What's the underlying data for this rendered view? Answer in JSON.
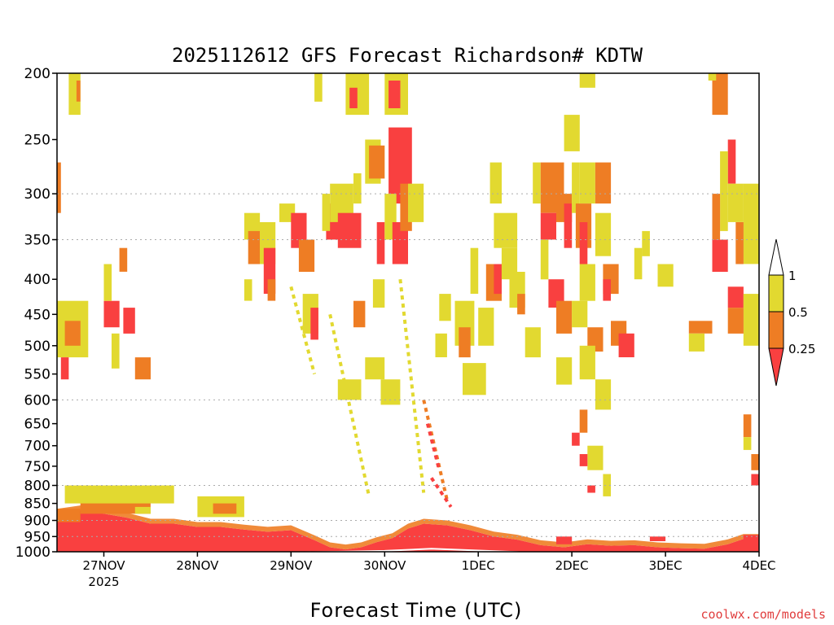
{
  "chart_data": {
    "type": "heatmap",
    "title": "2025112612 GFS Forecast Richardson# KDTW",
    "xlabel": "Forecast Time (UTC)",
    "credit": "coolwx.com/models",
    "y_axis": {
      "scale": "log",
      "reversed": true,
      "ylim": [
        1000,
        200
      ],
      "ticks": [
        "200",
        "250",
        "300",
        "350",
        "400",
        "450",
        "500",
        "550",
        "600",
        "650",
        "700",
        "750",
        "800",
        "850",
        "900",
        "950",
        "1000"
      ],
      "gridlines_at": [
        300,
        350,
        600,
        800,
        900,
        950,
        1000
      ]
    },
    "x_axis": {
      "start": "2025-11-26 12Z",
      "end": "2025-12-04 00Z",
      "ticks": [
        {
          "label": "27NOV",
          "sublabel": "2025",
          "t": 12
        },
        {
          "label": "28NOV",
          "t": 36
        },
        {
          "label": "29NOV",
          "t": 60
        },
        {
          "label": "30NOV",
          "t": 84
        },
        {
          "label": "1DEC",
          "t": 108
        },
        {
          "label": "2DEC",
          "t": 132
        },
        {
          "label": "3DEC",
          "t": 156
        },
        {
          "label": "4DEC",
          "t": 180
        }
      ]
    },
    "legend": {
      "placement": "right",
      "entries": [
        {
          "label": "1"
        },
        {
          "label": "0.5"
        },
        {
          "label": "0.25"
        }
      ],
      "colors": {
        "above": "#ffffff",
        "b05_1": "#e2d930",
        "b025_05": "#ee7d24",
        "below": "#f94040"
      }
    },
    "ground_color": "#8c4a2a",
    "surface_line_color": "#ffffff",
    "grid_color": "#aaaaaa",
    "low_level_layer": [
      {
        "t": 0,
        "top": 880
      },
      {
        "t": 6,
        "top": 870
      },
      {
        "t": 12,
        "top": 880
      },
      {
        "t": 18,
        "top": 892
      },
      {
        "t": 24,
        "top": 910
      },
      {
        "t": 30,
        "top": 910
      },
      {
        "t": 36,
        "top": 920
      },
      {
        "t": 42,
        "top": 920
      },
      {
        "t": 48,
        "top": 928
      },
      {
        "t": 54,
        "top": 935
      },
      {
        "t": 60,
        "top": 930
      },
      {
        "t": 66,
        "top": 962
      },
      {
        "t": 70,
        "top": 985
      },
      {
        "t": 74,
        "top": 992
      },
      {
        "t": 78,
        "top": 985
      },
      {
        "t": 82,
        "top": 968
      },
      {
        "t": 86,
        "top": 955
      },
      {
        "t": 90,
        "top": 925
      },
      {
        "t": 94,
        "top": 910
      },
      {
        "t": 100,
        "top": 915
      },
      {
        "t": 106,
        "top": 930
      },
      {
        "t": 112,
        "top": 950
      },
      {
        "t": 118,
        "top": 960
      },
      {
        "t": 124,
        "top": 978
      },
      {
        "t": 130,
        "top": 985
      },
      {
        "t": 136,
        "top": 975
      },
      {
        "t": 142,
        "top": 980
      },
      {
        "t": 148,
        "top": 978
      },
      {
        "t": 154,
        "top": 985
      },
      {
        "t": 160,
        "top": 988
      },
      {
        "t": 166,
        "top": 990
      },
      {
        "t": 172,
        "top": 975
      },
      {
        "t": 176,
        "top": 958
      },
      {
        "t": 180,
        "top": 958
      }
    ],
    "surface_line": [
      {
        "t": 0,
        "p": 1002
      },
      {
        "t": 24,
        "p": 1006
      },
      {
        "t": 48,
        "p": 1004
      },
      {
        "t": 72,
        "p": 1000
      },
      {
        "t": 84,
        "p": 997
      },
      {
        "t": 96,
        "p": 990
      },
      {
        "t": 120,
        "p": 1002
      },
      {
        "t": 144,
        "p": 1008
      },
      {
        "t": 168,
        "p": 1004
      },
      {
        "t": 180,
        "p": 1003
      }
    ],
    "cells": [
      {
        "t0": 0,
        "t1": 6,
        "p0": 865,
        "p1": 905,
        "cat": "b025_05"
      },
      {
        "t0": 6,
        "t1": 24,
        "p0": 835,
        "p1": 880,
        "cat": "b025_05"
      },
      {
        "t0": 2,
        "t1": 30,
        "p0": 800,
        "p1": 850,
        "cat": "b05_1"
      },
      {
        "t0": 36,
        "t1": 48,
        "p0": 830,
        "p1": 890,
        "cat": "b05_1"
      },
      {
        "t0": 40,
        "t1": 46,
        "p0": 850,
        "p1": 880,
        "cat": "b025_05"
      },
      {
        "t0": 20,
        "t1": 24,
        "p0": 860,
        "p1": 880,
        "cat": "b05_1"
      },
      {
        "t0": 3,
        "t1": 6,
        "p0": 200,
        "p1": 230,
        "cat": "b05_1"
      },
      {
        "t0": 5,
        "t1": 6,
        "p0": 205,
        "p1": 220,
        "cat": "b025_05"
      },
      {
        "t0": 0,
        "t1": 1,
        "p0": 270,
        "p1": 320,
        "cat": "b025_05"
      },
      {
        "t0": 0,
        "t1": 8,
        "p0": 430,
        "p1": 520,
        "cat": "b05_1"
      },
      {
        "t0": 2,
        "t1": 6,
        "p0": 460,
        "p1": 500,
        "cat": "b025_05"
      },
      {
        "t0": 1,
        "t1": 3,
        "p0": 520,
        "p1": 560,
        "cat": "below"
      },
      {
        "t0": 12,
        "t1": 16,
        "p0": 430,
        "p1": 470,
        "cat": "below"
      },
      {
        "t0": 12,
        "t1": 14,
        "p0": 380,
        "p1": 430,
        "cat": "b05_1"
      },
      {
        "t0": 17,
        "t1": 20,
        "p0": 440,
        "p1": 480,
        "cat": "below"
      },
      {
        "t0": 16,
        "t1": 18,
        "p0": 360,
        "p1": 390,
        "cat": "b025_05"
      },
      {
        "t0": 20,
        "t1": 24,
        "p0": 520,
        "p1": 560,
        "cat": "b025_05"
      },
      {
        "t0": 14,
        "t1": 16,
        "p0": 480,
        "p1": 540,
        "cat": "b05_1"
      },
      {
        "t0": 48,
        "t1": 52,
        "p0": 320,
        "p1": 350,
        "cat": "b05_1"
      },
      {
        "t0": 49,
        "t1": 54,
        "p0": 340,
        "p1": 380,
        "cat": "b025_05"
      },
      {
        "t0": 52,
        "t1": 56,
        "p0": 330,
        "p1": 380,
        "cat": "b05_1"
      },
      {
        "t0": 53,
        "t1": 56,
        "p0": 360,
        "p1": 420,
        "cat": "below"
      },
      {
        "t0": 48,
        "t1": 50,
        "p0": 400,
        "p1": 430,
        "cat": "b05_1"
      },
      {
        "t0": 54,
        "t1": 56,
        "p0": 400,
        "p1": 430,
        "cat": "b025_05"
      },
      {
        "t0": 57,
        "t1": 61,
        "p0": 310,
        "p1": 330,
        "cat": "b05_1"
      },
      {
        "t0": 60,
        "t1": 64,
        "p0": 320,
        "p1": 360,
        "cat": "below"
      },
      {
        "t0": 62,
        "t1": 66,
        "p0": 350,
        "p1": 390,
        "cat": "b025_05"
      },
      {
        "t0": 63,
        "t1": 67,
        "p0": 420,
        "p1": 480,
        "cat": "b05_1"
      },
      {
        "t0": 65,
        "t1": 67,
        "p0": 440,
        "p1": 490,
        "cat": "below"
      },
      {
        "t0": 66,
        "t1": 68,
        "p0": 190,
        "p1": 220,
        "cat": "b05_1"
      },
      {
        "t0": 69,
        "t1": 75,
        "p0": 310,
        "p1": 350,
        "cat": "below"
      },
      {
        "t0": 68,
        "t1": 70,
        "p0": 300,
        "p1": 340,
        "cat": "b05_1"
      },
      {
        "t0": 70,
        "t1": 76,
        "p0": 290,
        "p1": 330,
        "cat": "b05_1"
      },
      {
        "t0": 72,
        "t1": 78,
        "p0": 320,
        "p1": 360,
        "cat": "below"
      },
      {
        "t0": 74,
        "t1": 80,
        "p0": 200,
        "p1": 230,
        "cat": "b05_1"
      },
      {
        "t0": 75,
        "t1": 77,
        "p0": 210,
        "p1": 225,
        "cat": "below"
      },
      {
        "t0": 76,
        "t1": 78,
        "p0": 280,
        "p1": 310,
        "cat": "b05_1"
      },
      {
        "t0": 79,
        "t1": 83,
        "p0": 250,
        "p1": 290,
        "cat": "b05_1"
      },
      {
        "t0": 80,
        "t1": 84,
        "p0": 255,
        "p1": 285,
        "cat": "b025_05"
      },
      {
        "t0": 82,
        "t1": 84,
        "p0": 330,
        "p1": 380,
        "cat": "below"
      },
      {
        "t0": 84,
        "t1": 90,
        "p0": 200,
        "p1": 230,
        "cat": "b05_1"
      },
      {
        "t0": 85,
        "t1": 88,
        "p0": 205,
        "p1": 225,
        "cat": "below"
      },
      {
        "t0": 85,
        "t1": 91,
        "p0": 240,
        "p1": 310,
        "cat": "below"
      },
      {
        "t0": 84,
        "t1": 87,
        "p0": 300,
        "p1": 350,
        "cat": "b05_1"
      },
      {
        "t0": 86,
        "t1": 90,
        "p0": 330,
        "p1": 380,
        "cat": "below"
      },
      {
        "t0": 88,
        "t1": 91,
        "p0": 290,
        "p1": 340,
        "cat": "b025_05"
      },
      {
        "t0": 81,
        "t1": 84,
        "p0": 400,
        "p1": 440,
        "cat": "b05_1"
      },
      {
        "t0": 90,
        "t1": 94,
        "p0": 290,
        "p1": 330,
        "cat": "b05_1"
      },
      {
        "t0": 72,
        "t1": 78,
        "p0": 560,
        "p1": 600,
        "cat": "b05_1"
      },
      {
        "t0": 79,
        "t1": 84,
        "p0": 520,
        "p1": 560,
        "cat": "b05_1"
      },
      {
        "t0": 83,
        "t1": 88,
        "p0": 560,
        "p1": 610,
        "cat": "b05_1"
      },
      {
        "t0": 76,
        "t1": 79,
        "p0": 430,
        "p1": 470,
        "cat": "b025_05"
      },
      {
        "t0": 97,
        "t1": 100,
        "p0": 480,
        "p1": 520,
        "cat": "b05_1"
      },
      {
        "t0": 98,
        "t1": 101,
        "p0": 420,
        "p1": 460,
        "cat": "b05_1"
      },
      {
        "t0": 102,
        "t1": 107,
        "p0": 430,
        "p1": 500,
        "cat": "b05_1"
      },
      {
        "t0": 103,
        "t1": 106,
        "p0": 470,
        "p1": 520,
        "cat": "b025_05"
      },
      {
        "t0": 104,
        "t1": 110,
        "p0": 530,
        "p1": 590,
        "cat": "b05_1"
      },
      {
        "t0": 108,
        "t1": 112,
        "p0": 440,
        "p1": 500,
        "cat": "b05_1"
      },
      {
        "t0": 106,
        "t1": 108,
        "p0": 360,
        "p1": 420,
        "cat": "b05_1"
      },
      {
        "t0": 111,
        "t1": 114,
        "p0": 270,
        "p1": 310,
        "cat": "b05_1"
      },
      {
        "t0": 112,
        "t1": 118,
        "p0": 320,
        "p1": 360,
        "cat": "b05_1"
      },
      {
        "t0": 110,
        "t1": 114,
        "p0": 380,
        "p1": 430,
        "cat": "b025_05"
      },
      {
        "t0": 112,
        "t1": 114,
        "p0": 380,
        "p1": 420,
        "cat": "below"
      },
      {
        "t0": 114,
        "t1": 118,
        "p0": 360,
        "p1": 400,
        "cat": "b05_1"
      },
      {
        "t0": 116,
        "t1": 120,
        "p0": 390,
        "p1": 440,
        "cat": "b05_1"
      },
      {
        "t0": 118,
        "t1": 120,
        "p0": 420,
        "p1": 450,
        "cat": "b025_05"
      },
      {
        "t0": 120,
        "t1": 124,
        "p0": 470,
        "p1": 520,
        "cat": "b05_1"
      },
      {
        "t0": 122,
        "t1": 124,
        "p0": 270,
        "p1": 310,
        "cat": "b05_1"
      },
      {
        "t0": 124,
        "t1": 130,
        "p0": 270,
        "p1": 320,
        "cat": "b025_05"
      },
      {
        "t0": 124,
        "t1": 128,
        "p0": 320,
        "p1": 350,
        "cat": "below"
      },
      {
        "t0": 128,
        "t1": 132,
        "p0": 300,
        "p1": 330,
        "cat": "b025_05"
      },
      {
        "t0": 130,
        "t1": 132,
        "p0": 310,
        "p1": 360,
        "cat": "below"
      },
      {
        "t0": 124,
        "t1": 126,
        "p0": 350,
        "p1": 400,
        "cat": "b05_1"
      },
      {
        "t0": 126,
        "t1": 130,
        "p0": 400,
        "p1": 440,
        "cat": "below"
      },
      {
        "t0": 128,
        "t1": 132,
        "p0": 430,
        "p1": 480,
        "cat": "b025_05"
      },
      {
        "t0": 132,
        "t1": 134,
        "p0": 270,
        "p1": 320,
        "cat": "b05_1"
      },
      {
        "t0": 134,
        "t1": 138,
        "p0": 270,
        "p1": 310,
        "cat": "b05_1"
      },
      {
        "t0": 133,
        "t1": 137,
        "p0": 310,
        "p1": 360,
        "cat": "b025_05"
      },
      {
        "t0": 134,
        "t1": 136,
        "p0": 330,
        "p1": 380,
        "cat": "below"
      },
      {
        "t0": 134,
        "t1": 138,
        "p0": 380,
        "p1": 430,
        "cat": "b05_1"
      },
      {
        "t0": 132,
        "t1": 136,
        "p0": 430,
        "p1": 470,
        "cat": "b05_1"
      },
      {
        "t0": 136,
        "t1": 140,
        "p0": 470,
        "p1": 510,
        "cat": "b025_05"
      },
      {
        "t0": 138,
        "t1": 142,
        "p0": 270,
        "p1": 310,
        "cat": "b025_05"
      },
      {
        "t0": 138,
        "t1": 142,
        "p0": 320,
        "p1": 370,
        "cat": "b05_1"
      },
      {
        "t0": 140,
        "t1": 144,
        "p0": 380,
        "p1": 420,
        "cat": "b025_05"
      },
      {
        "t0": 140,
        "t1": 142,
        "p0": 400,
        "p1": 430,
        "cat": "below"
      },
      {
        "t0": 142,
        "t1": 146,
        "p0": 460,
        "p1": 500,
        "cat": "b025_05"
      },
      {
        "t0": 144,
        "t1": 148,
        "p0": 480,
        "p1": 520,
        "cat": "below"
      },
      {
        "t0": 148,
        "t1": 150,
        "p0": 360,
        "p1": 400,
        "cat": "b05_1"
      },
      {
        "t0": 150,
        "t1": 152,
        "p0": 340,
        "p1": 370,
        "cat": "b05_1"
      },
      {
        "t0": 154,
        "t1": 158,
        "p0": 380,
        "p1": 410,
        "cat": "b05_1"
      },
      {
        "t0": 128,
        "t1": 132,
        "p0": 520,
        "p1": 570,
        "cat": "b05_1"
      },
      {
        "t0": 134,
        "t1": 138,
        "p0": 500,
        "p1": 560,
        "cat": "b05_1"
      },
      {
        "t0": 138,
        "t1": 142,
        "p0": 560,
        "p1": 620,
        "cat": "b05_1"
      },
      {
        "t0": 134,
        "t1": 136,
        "p0": 620,
        "p1": 670,
        "cat": "b025_05"
      },
      {
        "t0": 132,
        "t1": 134,
        "p0": 670,
        "p1": 700,
        "cat": "below"
      },
      {
        "t0": 136,
        "t1": 140,
        "p0": 700,
        "p1": 760,
        "cat": "b05_1"
      },
      {
        "t0": 134,
        "t1": 136,
        "p0": 720,
        "p1": 750,
        "cat": "below"
      },
      {
        "t0": 140,
        "t1": 142,
        "p0": 770,
        "p1": 830,
        "cat": "b05_1"
      },
      {
        "t0": 136,
        "t1": 138,
        "p0": 800,
        "p1": 820,
        "cat": "below"
      },
      {
        "t0": 134,
        "t1": 138,
        "p0": 200,
        "p1": 210,
        "cat": "b05_1"
      },
      {
        "t0": 130,
        "t1": 134,
        "p0": 230,
        "p1": 260,
        "cat": "b05_1"
      },
      {
        "t0": 168,
        "t1": 172,
        "p0": 200,
        "p1": 230,
        "cat": "b025_05"
      },
      {
        "t0": 167,
        "t1": 169,
        "p0": 200,
        "p1": 205,
        "cat": "b05_1"
      },
      {
        "t0": 172,
        "t1": 174,
        "p0": 250,
        "p1": 290,
        "cat": "below"
      },
      {
        "t0": 170,
        "t1": 172,
        "p0": 260,
        "p1": 340,
        "cat": "b05_1"
      },
      {
        "t0": 168,
        "t1": 170,
        "p0": 300,
        "p1": 350,
        "cat": "b025_05"
      },
      {
        "t0": 172,
        "t1": 176,
        "p0": 290,
        "p1": 330,
        "cat": "b05_1"
      },
      {
        "t0": 176,
        "t1": 180,
        "p0": 290,
        "p1": 380,
        "cat": "b05_1"
      },
      {
        "t0": 168,
        "t1": 172,
        "p0": 350,
        "p1": 390,
        "cat": "below"
      },
      {
        "t0": 174,
        "t1": 176,
        "p0": 330,
        "p1": 380,
        "cat": "b025_05"
      },
      {
        "t0": 172,
        "t1": 176,
        "p0": 410,
        "p1": 440,
        "cat": "below"
      },
      {
        "t0": 176,
        "t1": 180,
        "p0": 420,
        "p1": 500,
        "cat": "b05_1"
      },
      {
        "t0": 172,
        "t1": 176,
        "p0": 440,
        "p1": 480,
        "cat": "b025_05"
      },
      {
        "t0": 162,
        "t1": 168,
        "p0": 460,
        "p1": 480,
        "cat": "b025_05"
      },
      {
        "t0": 162,
        "t1": 166,
        "p0": 480,
        "p1": 510,
        "cat": "b05_1"
      },
      {
        "t0": 176,
        "t1": 178,
        "p0": 630,
        "p1": 680,
        "cat": "b025_05"
      },
      {
        "t0": 176,
        "t1": 178,
        "p0": 680,
        "p1": 710,
        "cat": "b05_1"
      },
      {
        "t0": 178,
        "t1": 180,
        "p0": 720,
        "p1": 760,
        "cat": "b025_05"
      },
      {
        "t0": 178,
        "t1": 180,
        "p0": 770,
        "p1": 800,
        "cat": "below"
      },
      {
        "t0": 152,
        "t1": 156,
        "p0": 950,
        "p1": 965,
        "cat": "below"
      },
      {
        "t0": 128,
        "t1": 132,
        "p0": 950,
        "p1": 975,
        "cat": "below"
      },
      {
        "t0": 176,
        "t1": 180,
        "p0": 945,
        "p1": 965,
        "cat": "below"
      }
    ],
    "streaks": [
      {
        "t0": 70,
        "p0": 450,
        "t1": 80,
        "p1": 830,
        "cat": "b05_1"
      },
      {
        "t0": 88,
        "p0": 400,
        "t1": 94,
        "p1": 820,
        "cat": "b05_1"
      },
      {
        "t0": 94,
        "p0": 600,
        "t1": 100,
        "p1": 840,
        "cat": "b025_05"
      },
      {
        "t0": 95,
        "p0": 650,
        "t1": 98,
        "p1": 760,
        "cat": "below"
      },
      {
        "t0": 96,
        "p0": 780,
        "t1": 101,
        "p1": 860,
        "cat": "below"
      },
      {
        "t0": 60,
        "p0": 410,
        "t1": 66,
        "p1": 550,
        "cat": "b05_1"
      }
    ]
  }
}
